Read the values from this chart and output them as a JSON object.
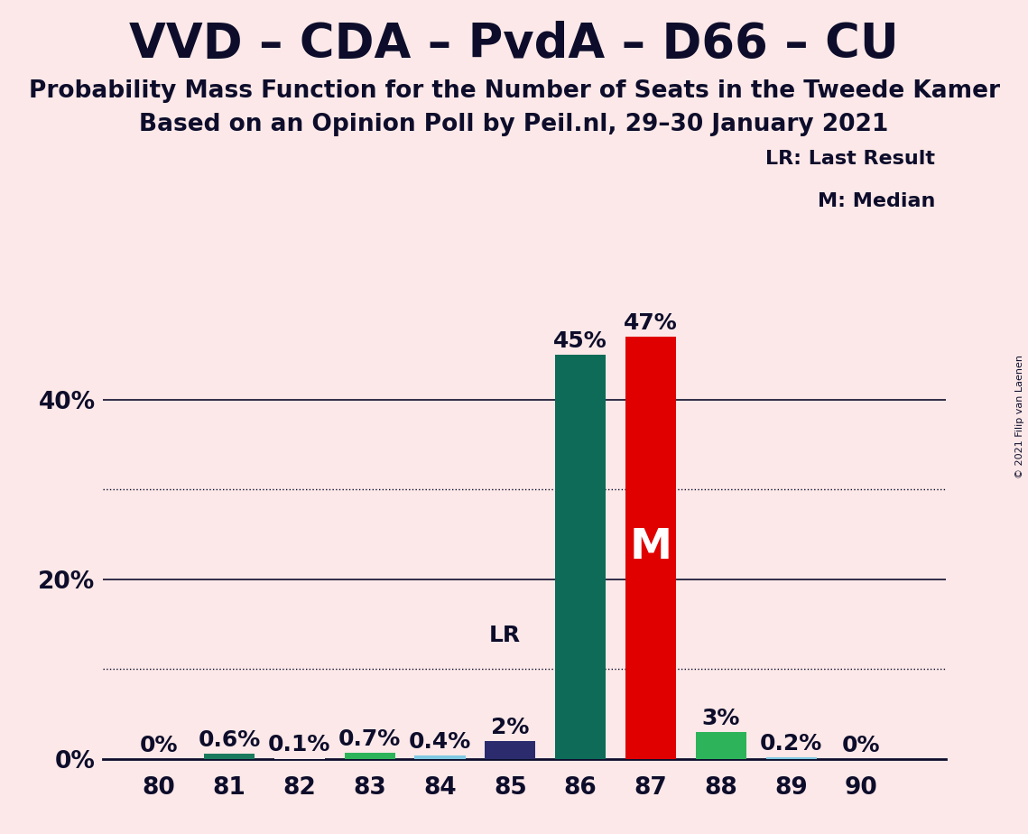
{
  "title": "VVD – CDA – PvdA – D66 – CU",
  "subtitle1": "Probability Mass Function for the Number of Seats in the Tweede Kamer",
  "subtitle2": "Based on an Opinion Poll by Peil.nl, 29–30 January 2021",
  "copyright": "© 2021 Filip van Laenen",
  "seats": [
    80,
    81,
    82,
    83,
    84,
    85,
    86,
    87,
    88,
    89,
    90
  ],
  "values": [
    0.0,
    0.6,
    0.1,
    0.7,
    0.4,
    2.0,
    45.0,
    47.0,
    3.0,
    0.2,
    0.0
  ],
  "colors": [
    "#fce8e8",
    "#1a7a5e",
    "#fce8e8",
    "#2db35a",
    "#7ec8e3",
    "#2b2b6e",
    "#0d6b58",
    "#e00000",
    "#2db35a",
    "#7ec8e3",
    "#fce8e8"
  ],
  "labels": [
    "0%",
    "0.6%",
    "0.1%",
    "0.7%",
    "0.4%",
    "2%",
    "45%",
    "47%",
    "3%",
    "0.2%",
    "0%"
  ],
  "lr_seat": 85,
  "median_seat": 87,
  "background_color": "#fce8e8",
  "text_color": "#0d0d2b",
  "ylim": [
    0,
    52
  ],
  "solid_gridlines": [
    20,
    40
  ],
  "dotted_gridlines": [
    10,
    30
  ],
  "ytick_positions": [
    0,
    20,
    40
  ],
  "ytick_labels": [
    "0%",
    "20%",
    "40%"
  ],
  "legend_text1": "LR: Last Result",
  "legend_text2": "M: Median",
  "title_fontsize": 38,
  "subtitle_fontsize": 19,
  "label_fontsize": 18,
  "tick_fontsize": 19,
  "bar_width": 0.72
}
